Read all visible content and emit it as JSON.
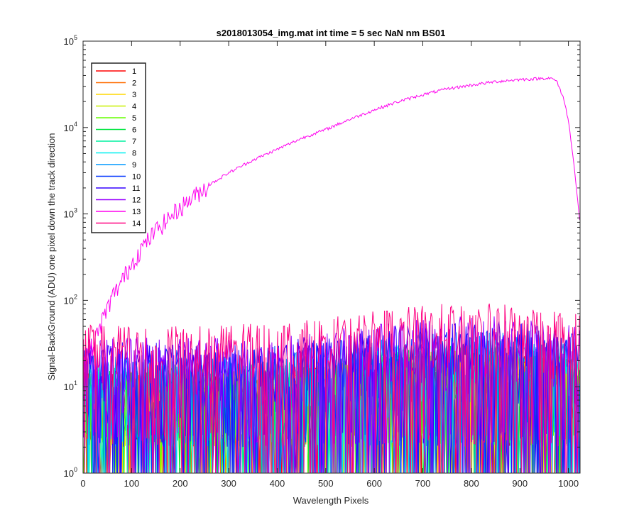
{
  "chart_data": {
    "type": "line",
    "title": "s2018013054_img.mat int time = 5 sec  NaN nm BS01",
    "xlabel": "Wavelength Pixels",
    "ylabel": "Signal-BackGround (ADU) one pixel down the track direction",
    "xlim": [
      0,
      1024
    ],
    "ylim": [
      1,
      100000
    ],
    "yscale": "log",
    "grid": false,
    "legend_position": "top-left",
    "x_ticks": [
      0,
      100,
      200,
      300,
      400,
      500,
      600,
      700,
      800,
      900,
      1000
    ],
    "x_tick_labels": [
      "0",
      "100",
      "200",
      "300",
      "400",
      "500",
      "600",
      "700",
      "800",
      "900",
      "1000"
    ],
    "y_ticks": [
      1,
      10,
      100,
      1000,
      10000,
      100000
    ],
    "y_tick_labels": [
      {
        "base": "10",
        "exp": "0"
      },
      {
        "base": "10",
        "exp": "1"
      },
      {
        "base": "10",
        "exp": "2"
      },
      {
        "base": "10",
        "exp": "3"
      },
      {
        "base": "10",
        "exp": "4"
      },
      {
        "base": "10",
        "exp": "5"
      }
    ],
    "series": [
      {
        "name": "1",
        "color": "#ff0000",
        "profile": "noise",
        "level": 8
      },
      {
        "name": "2",
        "color": "#ff6d00",
        "profile": "noise",
        "level": 8
      },
      {
        "name": "3",
        "color": "#ffd700",
        "profile": "noise",
        "level": 8
      },
      {
        "name": "4",
        "color": "#c8f000",
        "profile": "noise",
        "level": 8
      },
      {
        "name": "5",
        "color": "#66ff00",
        "profile": "noise",
        "level": 9
      },
      {
        "name": "6",
        "color": "#00e640",
        "profile": "noise",
        "level": 9
      },
      {
        "name": "7",
        "color": "#00f0a0",
        "profile": "noise",
        "level": 10
      },
      {
        "name": "8",
        "color": "#00f0f0",
        "profile": "noise",
        "level": 11
      },
      {
        "name": "9",
        "color": "#0099ff",
        "profile": "noise",
        "level": 13
      },
      {
        "name": "10",
        "color": "#0033ff",
        "profile": "noise",
        "level": 15
      },
      {
        "name": "11",
        "color": "#3300ff",
        "profile": "noise",
        "level": 18
      },
      {
        "name": "12",
        "color": "#9900ff",
        "profile": "noise",
        "level": 20
      },
      {
        "name": "13",
        "color": "#ff00ee",
        "profile": "spectrum",
        "points": [
          [
            1,
            22
          ],
          [
            20,
            30
          ],
          [
            40,
            60
          ],
          [
            60,
            110
          ],
          [
            80,
            170
          ],
          [
            100,
            270
          ],
          [
            120,
            400
          ],
          [
            150,
            650
          ],
          [
            200,
            1200
          ],
          [
            250,
            2000
          ],
          [
            300,
            3000
          ],
          [
            350,
            4200
          ],
          [
            400,
            5600
          ],
          [
            450,
            7500
          ],
          [
            500,
            9500
          ],
          [
            550,
            12500
          ],
          [
            600,
            16000
          ],
          [
            650,
            20000
          ],
          [
            700,
            24000
          ],
          [
            750,
            28000
          ],
          [
            800,
            31000
          ],
          [
            850,
            34000
          ],
          [
            900,
            36000
          ],
          [
            930,
            36500
          ],
          [
            960,
            37500
          ],
          [
            975,
            35000
          ],
          [
            990,
            22000
          ],
          [
            1000,
            12000
          ],
          [
            1010,
            4500
          ],
          [
            1024,
            750
          ]
        ]
      },
      {
        "name": "14",
        "color": "#ff0080",
        "profile": "noise",
        "level": 28
      }
    ]
  }
}
